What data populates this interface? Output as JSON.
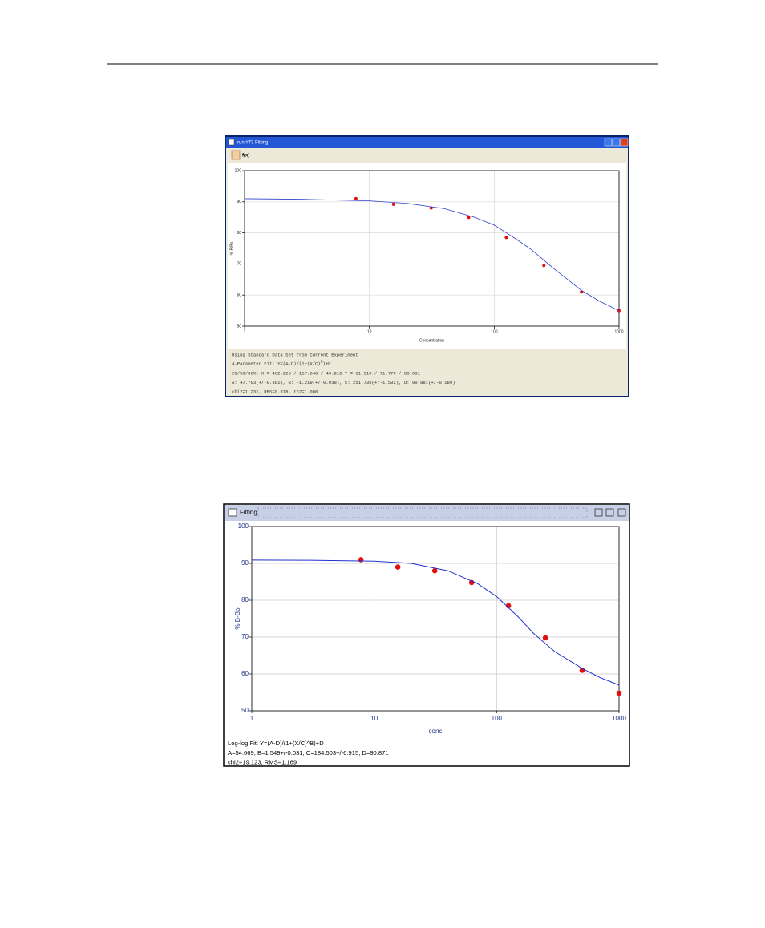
{
  "windows": [
    {
      "title": "run #73 Fitting",
      "toolbar": "f(x)",
      "lines": [
        "Using Standard Data Set from Current Experiment",
        [
          "4-Parameter Fit: Y=(A-D)/(1+(X/C)",
          "B",
          ")+D"
        ],
        "20/50/80%: X = 462.223 / 157.646 / 49.918 Y = 61.510 / 71.770 / 83.631",
        "A: 47.703(+/-0.381), B: -1.219(+/-0.018), C: 251.736(+/-1.592), D: 90.881(+/-0.189)",
        "chi2=1.231, RMS=0.318, r^2=1.000"
      ]
    },
    {
      "title": "Fitting",
      "lines": [
        "Log-log Fit: Y=(A-D)/(1+(X/C)^B)+D",
        "A=54.669, B=1.549+/-0.031, C=184.503+/-6.915, D=90.871",
        "chi2=19.123, RMS=1.169"
      ]
    }
  ],
  "chart_data": [
    {
      "type": "scatter",
      "x_label": "Concentration",
      "y_label": "% B/Bo",
      "log_x": true,
      "grid": true,
      "xlim": [
        1,
        1000
      ],
      "xticks": [
        1,
        10,
        100,
        1000
      ],
      "ylim": [
        50,
        100
      ],
      "yticks": [
        50,
        60,
        70,
        80,
        90,
        100
      ],
      "series": [
        {
          "mode": "markers",
          "color": "#e01010",
          "x": [
            7.8,
            15.6,
            31.25,
            62.5,
            125,
            250,
            500,
            1000
          ],
          "values": [
            91,
            89.2,
            88,
            85,
            78.5,
            69.5,
            61,
            55
          ]
        },
        {
          "mode": "line",
          "color": "#3040c8",
          "x": [
            1,
            3,
            10,
            20,
            40,
            70,
            100,
            150,
            200,
            300,
            500,
            700,
            1000
          ],
          "values": [
            91,
            90.8,
            90.3,
            89.5,
            87.8,
            85,
            82.5,
            78,
            74.5,
            68.5,
            61.5,
            58,
            55
          ]
        }
      ]
    },
    {
      "type": "scatter",
      "x_label": "conc",
      "y_label": "% B-Bo",
      "log_x": true,
      "grid": true,
      "xlim": [
        1,
        1000
      ],
      "xticks": [
        1,
        10,
        100,
        1000
      ],
      "ylim": [
        50,
        100
      ],
      "yticks": [
        50,
        60,
        70,
        80,
        90,
        100
      ],
      "series": [
        {
          "mode": "markers",
          "color": "#e01010",
          "x": [
            7.8,
            15.6,
            31.25,
            62.5,
            125,
            250,
            500,
            1000
          ],
          "values": [
            91,
            89,
            88,
            84.8,
            78.5,
            69.8,
            61,
            54.8
          ]
        },
        {
          "mode": "line",
          "color": "#2030d0",
          "x": [
            1,
            3,
            10,
            20,
            40,
            70,
            100,
            150,
            200,
            300,
            500,
            700,
            1000
          ],
          "values": [
            90.9,
            90.85,
            90.6,
            90,
            88,
            84.5,
            81,
            75.5,
            71,
            66,
            61.5,
            59,
            57
          ]
        }
      ]
    }
  ]
}
